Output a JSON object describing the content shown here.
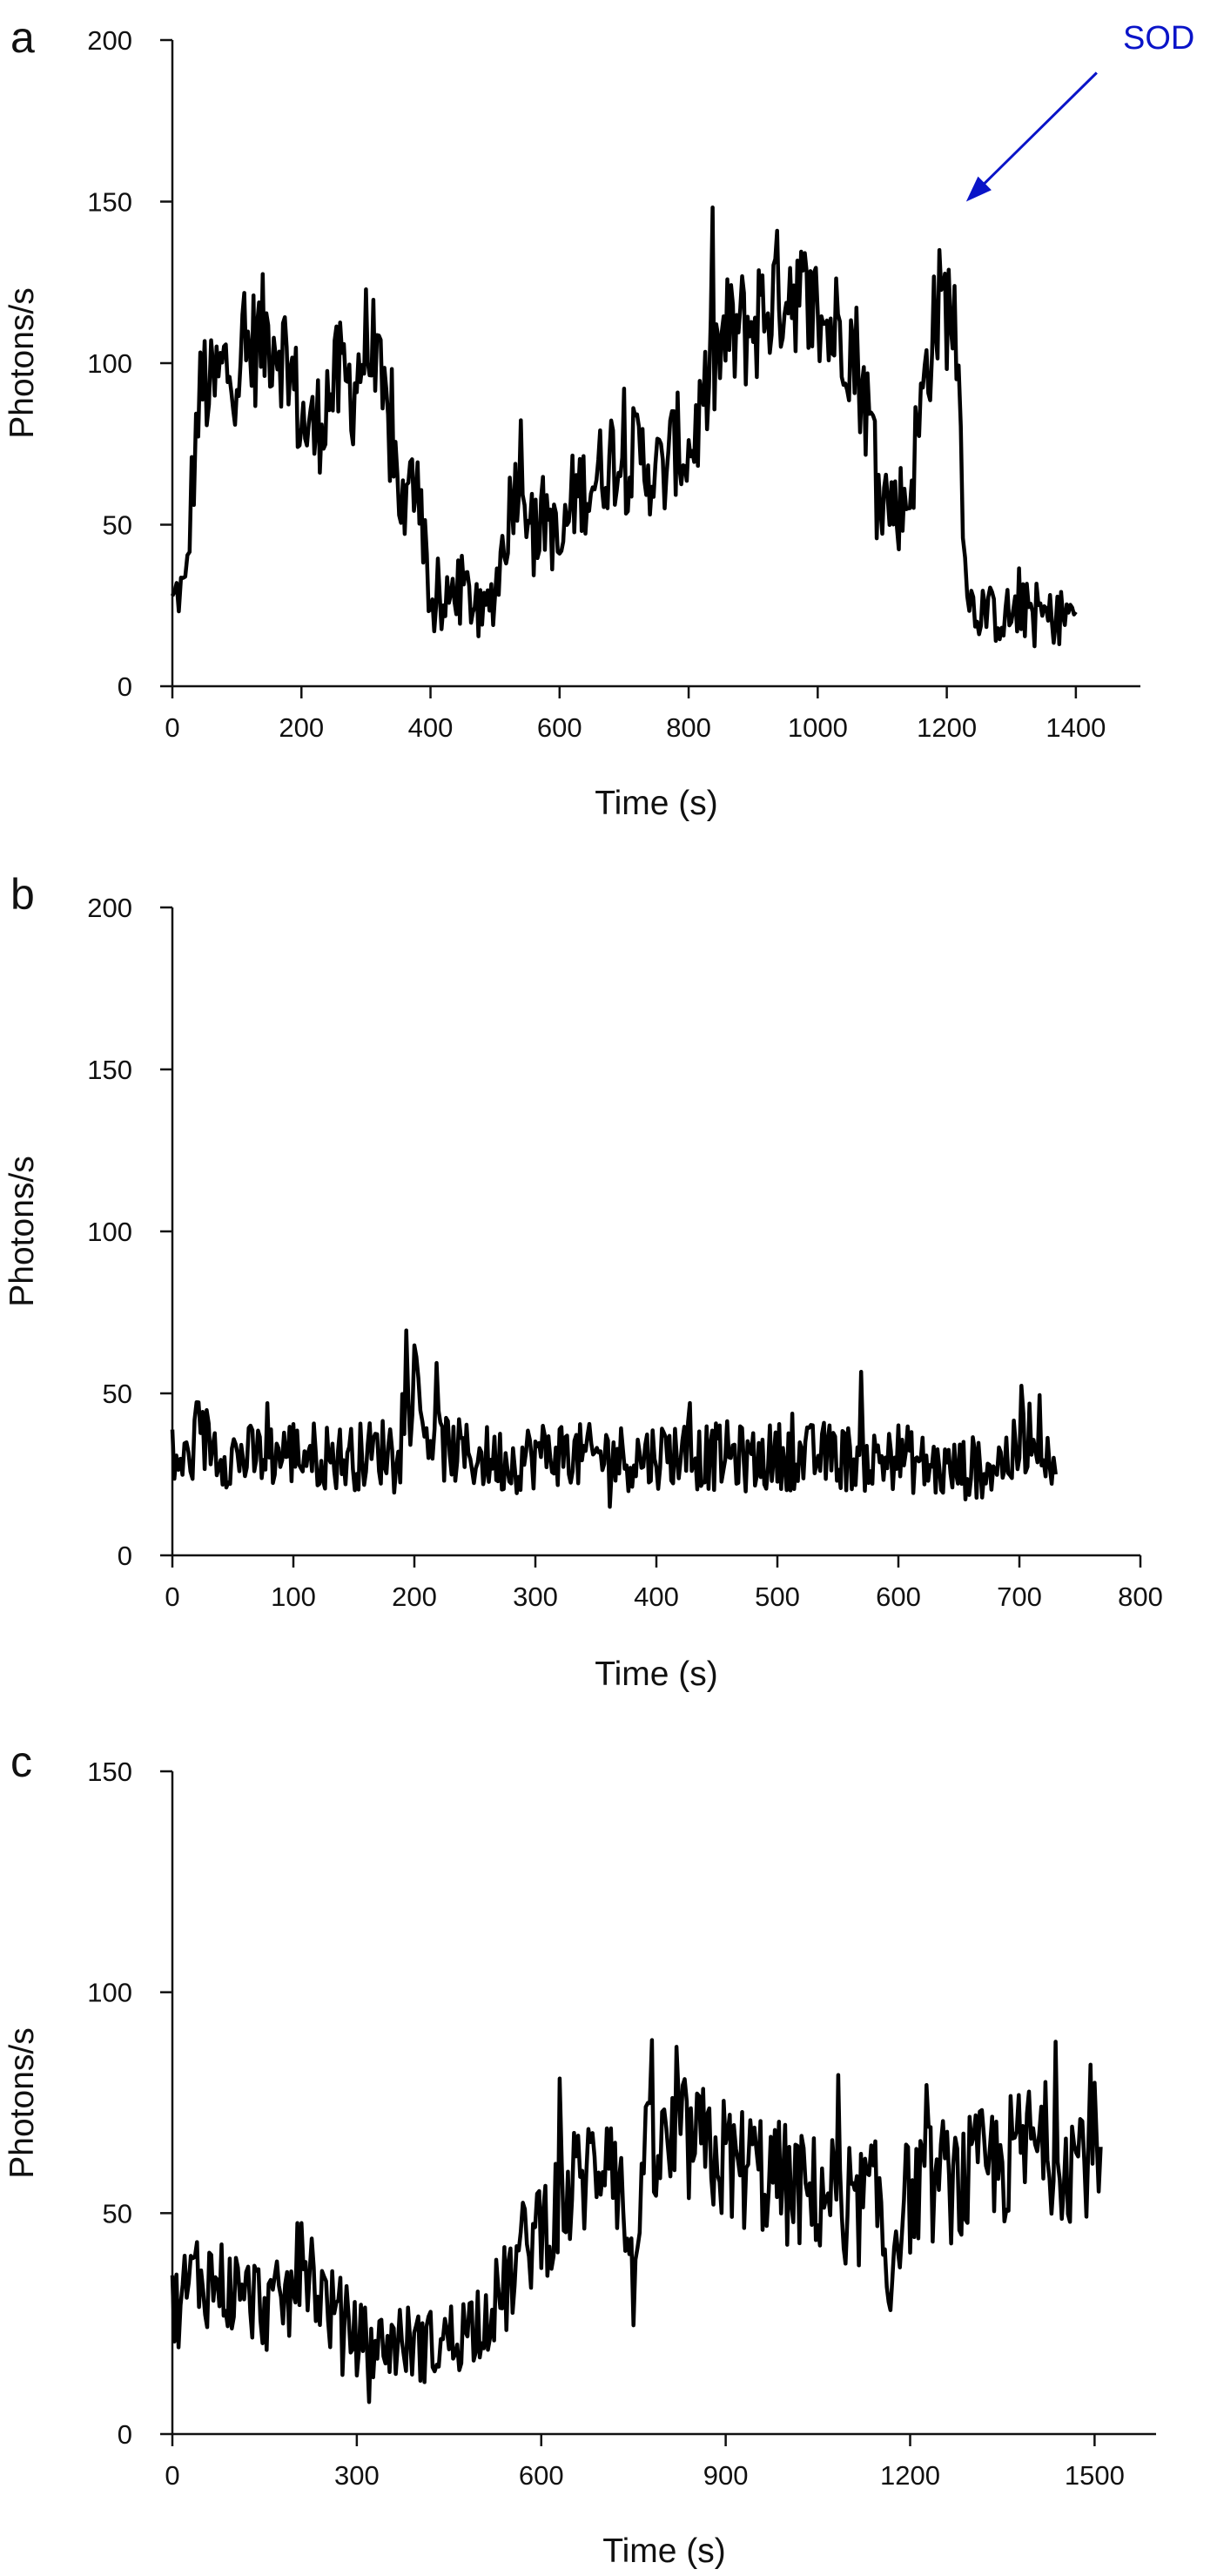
{
  "chart_data": [
    {
      "panel_label": "a",
      "type": "line",
      "xlabel": "Time (s)",
      "ylabel": "Photons/s",
      "xlim": [
        0,
        1500
      ],
      "ylim": [
        0,
        200
      ],
      "xticks": [
        0,
        200,
        400,
        600,
        800,
        1000,
        1200,
        1400
      ],
      "yticks": [
        0,
        50,
        100,
        150,
        200
      ],
      "grid": false,
      "color": "#000000",
      "annotation": {
        "text": "SOD",
        "x": 1230,
        "y": 150,
        "color": "#0a14c8"
      },
      "series": [
        {
          "x": [
            0,
            10,
            20,
            30,
            40,
            50,
            60,
            80,
            100,
            120,
            140,
            160,
            180,
            200,
            220,
            240,
            260,
            280,
            300,
            320,
            340,
            360,
            380,
            400,
            420,
            440,
            460,
            480,
            500,
            520,
            540,
            560,
            580,
            600,
            620,
            640,
            660,
            680,
            700,
            720,
            740,
            760,
            780,
            800,
            820,
            840,
            860,
            880,
            900,
            920,
            940,
            960,
            980,
            1000,
            1020,
            1040,
            1060,
            1080,
            1100,
            1120,
            1140,
            1160,
            1180,
            1200,
            1215,
            1225,
            1235,
            1250,
            1270,
            1300,
            1330,
            1360,
            1380,
            1400
          ],
          "y": [
            25,
            30,
            28,
            60,
            85,
            95,
            90,
            98,
            100,
            104,
            108,
            110,
            100,
            82,
            78,
            90,
            95,
            92,
            106,
            92,
            75,
            52,
            70,
            25,
            22,
            32,
            28,
            20,
            30,
            52,
            72,
            45,
            55,
            40,
            58,
            62,
            65,
            72,
            68,
            72,
            68,
            65,
            75,
            72,
            85,
            100,
            108,
            110,
            112,
            118,
            122,
            126,
            118,
            115,
            110,
            112,
            102,
            82,
            60,
            55,
            58,
            85,
            115,
            118,
            110,
            60,
            25,
            24,
            22,
            22,
            24,
            21,
            22,
            23
          ]
        }
      ]
    },
    {
      "panel_label": "b",
      "type": "line",
      "xlabel": "Time (s)",
      "ylabel": "Photons/s",
      "xlim": [
        0,
        800
      ],
      "ylim": [
        0,
        200
      ],
      "xticks": [
        0,
        100,
        200,
        300,
        400,
        500,
        600,
        700,
        800
      ],
      "yticks": [
        0,
        50,
        100,
        150,
        200
      ],
      "grid": false,
      "color": "#000000",
      "series": [
        {
          "x": [
            0,
            10,
            20,
            30,
            40,
            60,
            80,
            100,
            120,
            140,
            160,
            180,
            190,
            200,
            210,
            220,
            240,
            260,
            280,
            300,
            320,
            340,
            360,
            380,
            400,
            420,
            440,
            460,
            480,
            500,
            520,
            540,
            560,
            580,
            600,
            620,
            640,
            660,
            680,
            700,
            710,
            720,
            730
          ],
          "y": [
            30,
            28,
            34,
            36,
            32,
            30,
            31,
            32,
            31,
            30,
            31,
            33,
            44,
            48,
            40,
            34,
            31,
            30,
            29,
            31,
            32,
            30,
            31,
            30,
            31,
            32,
            30,
            31,
            29,
            31,
            30,
            31,
            30,
            29,
            31,
            28,
            26,
            27,
            28,
            32,
            40,
            37,
            25
          ]
        }
      ]
    },
    {
      "panel_label": "c",
      "type": "line",
      "xlabel": "Time (s)",
      "ylabel": "Photons/s",
      "xlim": [
        0,
        1600
      ],
      "ylim": [
        0,
        150
      ],
      "xticks": [
        0,
        300,
        600,
        900,
        1200,
        1500
      ],
      "yticks": [
        0,
        50,
        100,
        150
      ],
      "grid": false,
      "color": "#000000",
      "series": [
        {
          "x": [
            0,
            20,
            40,
            60,
            80,
            100,
            120,
            140,
            160,
            180,
            200,
            210,
            220,
            240,
            260,
            280,
            300,
            320,
            340,
            360,
            380,
            400,
            420,
            440,
            460,
            480,
            500,
            520,
            540,
            560,
            580,
            600,
            620,
            640,
            660,
            680,
            700,
            710,
            720,
            740,
            750,
            760,
            780,
            800,
            820,
            840,
            860,
            880,
            900,
            920,
            940,
            960,
            980,
            1000,
            1020,
            1040,
            1060,
            1080,
            1095,
            1110,
            1130,
            1150,
            1165,
            1180,
            1200,
            1220,
            1240,
            1260,
            1280,
            1300,
            1320,
            1340,
            1360,
            1380,
            1400,
            1420,
            1440,
            1460,
            1480,
            1500,
            1510
          ],
          "y": [
            28,
            32,
            36,
            35,
            34,
            32,
            31,
            30,
            28,
            30,
            32,
            45,
            40,
            32,
            28,
            25,
            22,
            20,
            20,
            21,
            21,
            20,
            20,
            21,
            22,
            24,
            27,
            29,
            32,
            38,
            44,
            48,
            50,
            53,
            57,
            60,
            64,
            72,
            62,
            45,
            30,
            58,
            62,
            63,
            65,
            66,
            64,
            63,
            62,
            60,
            61,
            59,
            58,
            56,
            55,
            54,
            55,
            56,
            38,
            50,
            54,
            52,
            32,
            50,
            54,
            56,
            57,
            58,
            56,
            58,
            60,
            61,
            62,
            64,
            66,
            65,
            64,
            63,
            64,
            65,
            65
          ]
        }
      ]
    }
  ]
}
